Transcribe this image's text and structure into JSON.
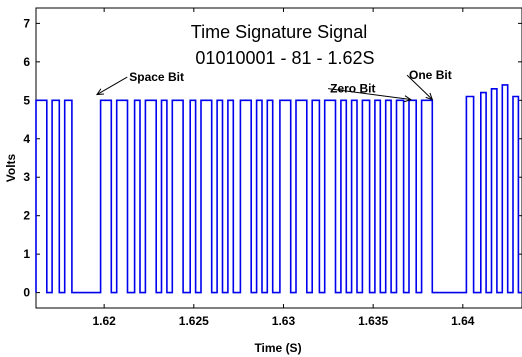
{
  "chart_data": {
    "type": "line",
    "title": "Time Signature Signal",
    "subtitle": "01010001 - 81 - 1.62S",
    "xlabel": "Time (S)",
    "ylabel": "Volts",
    "xlim": [
      1.6162,
      1.6433
    ],
    "ylim": [
      -0.4,
      7.4
    ],
    "xticks": [
      1.62,
      1.625,
      1.63,
      1.635,
      1.64
    ],
    "xtick_labels": [
      "1.62",
      "1.625",
      "1.63",
      "1.635",
      "1.64"
    ],
    "yticks": [
      0,
      1,
      2,
      3,
      4,
      5,
      6,
      7
    ],
    "ytick_labels": [
      "0",
      "1",
      "2",
      "3",
      "4",
      "5",
      "6",
      "7"
    ],
    "grid": false,
    "line_color": "#0000ee",
    "series": [
      {
        "pulses": [
          [
            1.6162,
            1.6168,
            5.0
          ],
          [
            1.6171,
            1.6175,
            5.0
          ],
          [
            1.6178,
            1.6182,
            5.0
          ],
          [
            1.6198,
            1.6204,
            5.0
          ],
          [
            1.6207,
            1.6213,
            5.0
          ],
          [
            1.6217,
            1.622,
            5.0
          ],
          [
            1.6223,
            1.6229,
            5.0
          ],
          [
            1.6232,
            1.6235,
            5.0
          ],
          [
            1.6238,
            1.6244,
            5.0
          ],
          [
            1.6248,
            1.6251,
            5.0
          ],
          [
            1.6254,
            1.626,
            5.0
          ],
          [
            1.6263,
            1.6266,
            5.0
          ],
          [
            1.6269,
            1.6272,
            5.0
          ],
          [
            1.6276,
            1.6282,
            5.0
          ],
          [
            1.6285,
            1.6288,
            5.0
          ],
          [
            1.6291,
            1.6294,
            5.0
          ],
          [
            1.6298,
            1.6304,
            5.0
          ],
          [
            1.6307,
            1.6313,
            5.0
          ],
          [
            1.6316,
            1.632,
            5.0
          ],
          [
            1.6323,
            1.6329,
            5.0
          ],
          [
            1.6332,
            1.6335,
            5.0
          ],
          [
            1.6338,
            1.6341,
            5.0
          ],
          [
            1.6344,
            1.6348,
            5.0
          ],
          [
            1.6351,
            1.6354,
            5.0
          ],
          [
            1.6357,
            1.636,
            5.0
          ],
          [
            1.6363,
            1.6367,
            5.0
          ],
          [
            1.637,
            1.6374,
            5.0
          ],
          [
            1.6377,
            1.6383,
            5.0
          ],
          [
            1.6402,
            1.6406,
            5.1
          ],
          [
            1.641,
            1.6413,
            5.2
          ],
          [
            1.6416,
            1.6419,
            5.3
          ],
          [
            1.6422,
            1.6425,
            5.4
          ],
          [
            1.6428,
            1.6431,
            5.1
          ]
        ]
      }
    ],
    "annotations": [
      {
        "text": "Space Bit",
        "x": 1.6214,
        "y": 5.5,
        "target_x": 1.6196,
        "target_y": 5.15
      },
      {
        "text": "Zero Bit",
        "x": 1.6326,
        "y": 5.2,
        "target_x": 1.6371,
        "target_y": 5.02
      },
      {
        "text": "One Bit",
        "x": 1.637,
        "y": 5.55,
        "target_x": 1.6383,
        "target_y": 5.02
      }
    ]
  }
}
